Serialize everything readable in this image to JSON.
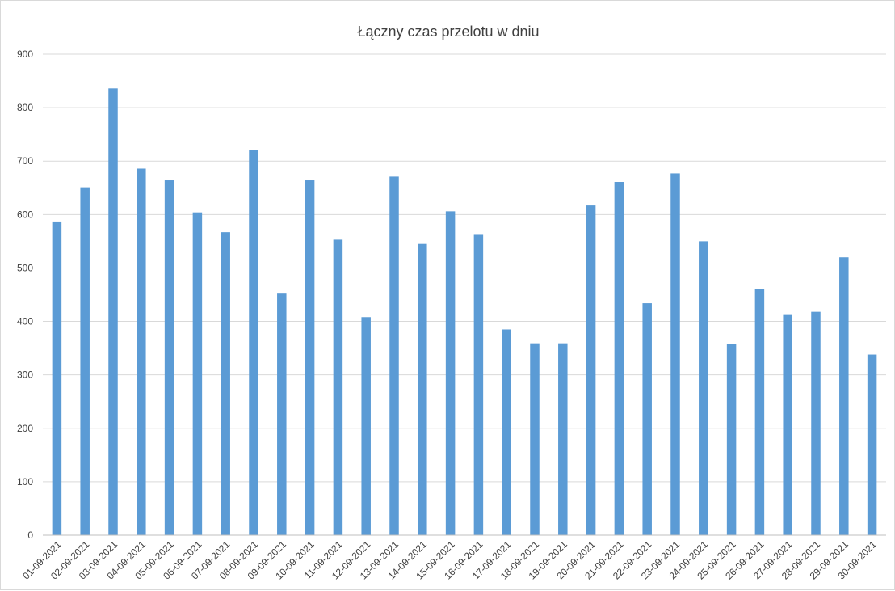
{
  "chart_data": {
    "type": "bar",
    "title": "Łączny czas przelotu w dniu",
    "xlabel": "",
    "ylabel": "",
    "ylim": [
      0,
      900
    ],
    "yticks": [
      0,
      100,
      200,
      300,
      400,
      500,
      600,
      700,
      800,
      900
    ],
    "grid": true,
    "legend": "none",
    "bar_color": "#5b9bd5",
    "categories": [
      "01-09-2021",
      "02-09-2021",
      "03-09-2021",
      "04-09-2021",
      "05-09-2021",
      "06-09-2021",
      "07-09-2021",
      "08-09-2021",
      "09-09-2021",
      "10-09-2021",
      "11-09-2021",
      "12-09-2021",
      "13-09-2021",
      "14-09-2021",
      "15-09-2021",
      "16-09-2021",
      "17-09-2021",
      "18-09-2021",
      "19-09-2021",
      "20-09-2021",
      "21-09-2021",
      "22-09-2021",
      "23-09-2021",
      "24-09-2021",
      "25-09-2021",
      "26-09-2021",
      "27-09-2021",
      "28-09-2021",
      "29-09-2021",
      "30-09-2021"
    ],
    "values": [
      587,
      651,
      836,
      686,
      664,
      604,
      567,
      720,
      452,
      664,
      553,
      408,
      671,
      545,
      606,
      562,
      385,
      359,
      359,
      617,
      661,
      434,
      677,
      550,
      357,
      461,
      412,
      418,
      520,
      338
    ]
  }
}
